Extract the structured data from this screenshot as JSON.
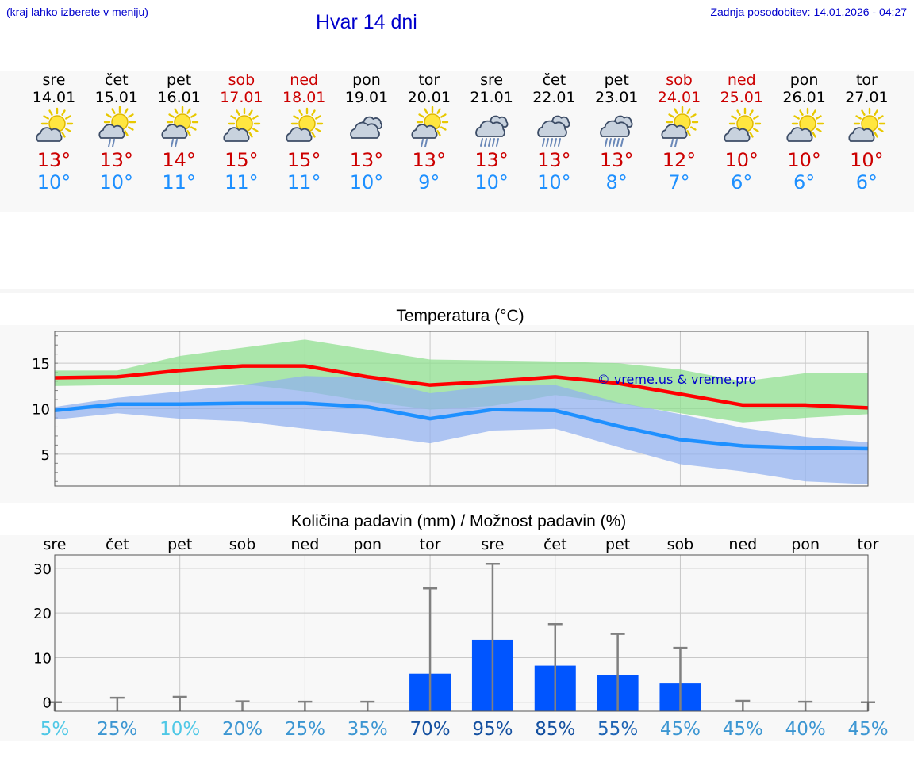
{
  "header": {
    "menu_hint": "(kraj lahko izberete v meniju)",
    "title": "Hvar 14 dni",
    "last_update": "Zadnja posodobitev: 14.01.2026 - 04:27"
  },
  "colors": {
    "link": "#0000cc",
    "weekend": "#cc0000",
    "temp_max": "#ff0000",
    "temp_min": "#1e90ff",
    "precip_bar": "#0055ff",
    "band_max": "#90e090",
    "band_min": "#90b0f0"
  },
  "days": [
    {
      "name": "sre",
      "date": "14.01",
      "weekend": false,
      "icon": "partly-cloudy-sun-icon",
      "max": "13°",
      "min": "10°"
    },
    {
      "name": "čet",
      "date": "15.01",
      "weekend": false,
      "icon": "sun-cloud-rain-icon",
      "max": "13°",
      "min": "10°"
    },
    {
      "name": "pet",
      "date": "16.01",
      "weekend": false,
      "icon": "sun-cloud-rain-icon",
      "max": "14°",
      "min": "11°"
    },
    {
      "name": "sob",
      "date": "17.01",
      "weekend": true,
      "icon": "partly-cloudy-sun-icon",
      "max": "15°",
      "min": "11°"
    },
    {
      "name": "ned",
      "date": "18.01",
      "weekend": true,
      "icon": "partly-cloudy-sun-icon",
      "max": "15°",
      "min": "11°"
    },
    {
      "name": "pon",
      "date": "19.01",
      "weekend": false,
      "icon": "cloudy-icon",
      "max": "13°",
      "min": "10°"
    },
    {
      "name": "tor",
      "date": "20.01",
      "weekend": false,
      "icon": "sun-cloud-rain-icon",
      "max": "13°",
      "min": "9°"
    },
    {
      "name": "sre",
      "date": "21.01",
      "weekend": false,
      "icon": "cloud-rain-icon",
      "max": "13°",
      "min": "10°"
    },
    {
      "name": "čet",
      "date": "22.01",
      "weekend": false,
      "icon": "cloud-rain-icon",
      "max": "13°",
      "min": "10°"
    },
    {
      "name": "pet",
      "date": "23.01",
      "weekend": false,
      "icon": "cloud-rain-icon",
      "max": "13°",
      "min": "8°"
    },
    {
      "name": "sob",
      "date": "24.01",
      "weekend": true,
      "icon": "sun-cloud-rain-icon",
      "max": "12°",
      "min": "7°"
    },
    {
      "name": "ned",
      "date": "25.01",
      "weekend": true,
      "icon": "partly-cloudy-sun-icon",
      "max": "10°",
      "min": "6°"
    },
    {
      "name": "pon",
      "date": "26.01",
      "weekend": false,
      "icon": "partly-cloudy-sun-icon",
      "max": "10°",
      "min": "6°"
    },
    {
      "name": "tor",
      "date": "27.01",
      "weekend": false,
      "icon": "partly-cloudy-sun-icon",
      "max": "10°",
      "min": "6°"
    }
  ],
  "chart_data": [
    {
      "type": "line",
      "title": "Temperatura (°C)",
      "xlabel": "",
      "ylabel": "",
      "ylim": [
        1.5,
        18.5
      ],
      "yticks": [
        5,
        10,
        15
      ],
      "y_tick_labels": [
        "5",
        "10",
        "15"
      ],
      "watermark": "© vreme.us & vreme.pro",
      "x": [
        0,
        1,
        2,
        3,
        4,
        5,
        6,
        7,
        8,
        9,
        10,
        11,
        12,
        13
      ],
      "series": [
        {
          "name": "max",
          "values": [
            13.4,
            13.5,
            14.2,
            14.7,
            14.7,
            13.5,
            12.6,
            13.0,
            13.5,
            12.8,
            11.6,
            10.4,
            10.4,
            10.1
          ]
        },
        {
          "name": "min",
          "values": [
            9.8,
            10.5,
            10.5,
            10.6,
            10.6,
            10.2,
            8.9,
            9.9,
            9.8,
            8.1,
            6.6,
            5.9,
            5.7,
            5.6
          ]
        },
        {
          "name": "max_range_low",
          "values": [
            12.5,
            12.6,
            12.6,
            12.7,
            11.9,
            10.8,
            9.9,
            10.3,
            11.5,
            10.6,
            9.5,
            8.5,
            9.0,
            9.4
          ]
        },
        {
          "name": "max_range_high",
          "values": [
            14.2,
            14.2,
            15.8,
            16.7,
            17.6,
            16.5,
            15.4,
            15.3,
            15.2,
            15.0,
            14.3,
            13.0,
            13.9,
            13.9
          ]
        },
        {
          "name": "min_range_low",
          "values": [
            8.8,
            9.5,
            8.9,
            8.6,
            7.8,
            7.1,
            6.2,
            7.6,
            7.8,
            5.8,
            3.9,
            3.1,
            2.0,
            1.7
          ]
        },
        {
          "name": "min_range_high",
          "values": [
            10.2,
            11.2,
            11.9,
            12.6,
            13.6,
            13.4,
            11.7,
            12.5,
            12.6,
            10.7,
            9.4,
            7.9,
            6.9,
            6.3
          ]
        }
      ]
    },
    {
      "type": "bar",
      "title": "Količina padavin (mm) / Možnost padavin (%)",
      "xlabel": "",
      "ylabel": "",
      "ylim": [
        -2,
        33
      ],
      "yticks": [
        0,
        10,
        20,
        30
      ],
      "y_tick_labels": [
        "0",
        "10",
        "20",
        "30"
      ],
      "categories": [
        "sre",
        "čet",
        "pet",
        "sob",
        "ned",
        "pon",
        "tor",
        "sre",
        "čet",
        "pet",
        "sob",
        "ned",
        "pon",
        "tor"
      ],
      "values": [
        0,
        0,
        0,
        0,
        0,
        0,
        6.4,
        14.0,
        8.2,
        6.0,
        4.2,
        0,
        0,
        0
      ],
      "error_max": [
        0,
        1.0,
        1.2,
        0.2,
        0.1,
        0.1,
        25.5,
        31.0,
        17.5,
        15.3,
        12.2,
        0.3,
        0.1,
        0
      ],
      "probability_labels": [
        "5%",
        "25%",
        "10%",
        "20%",
        "25%",
        "35%",
        "70%",
        "95%",
        "85%",
        "55%",
        "45%",
        "45%",
        "40%",
        "45%"
      ],
      "probability_values": [
        5,
        25,
        10,
        20,
        25,
        35,
        70,
        95,
        85,
        55,
        45,
        45,
        40,
        45
      ]
    }
  ]
}
